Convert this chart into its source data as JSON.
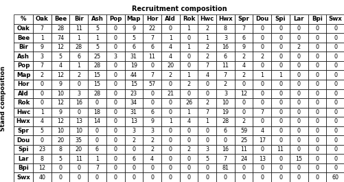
{
  "title": "Recruitment composition",
  "col_header": [
    "%",
    "Oak",
    "Bee",
    "Bir",
    "Ash",
    "Pop",
    "Map",
    "Hor",
    "Ald",
    "Rok",
    "Hwc",
    "Hwx",
    "Spr",
    "Dou",
    "Spi",
    "Lar",
    "Bpi",
    "Swx"
  ],
  "row_header": [
    "Oak",
    "Bee",
    "Bir",
    "Ash",
    "Pop",
    "Map",
    "Hor",
    "Ald",
    "Rok",
    "Hwc",
    "Hwx",
    "Spr",
    "Dou",
    "Spi",
    "Lar",
    "Bpi",
    "Swx"
  ],
  "y_label": "Stand composition",
  "data": [
    [
      7,
      28,
      11,
      5,
      0,
      9,
      22,
      0,
      1,
      2,
      8,
      7,
      0,
      0,
      0,
      0,
      0
    ],
    [
      1,
      74,
      1,
      1,
      0,
      5,
      7,
      1,
      0,
      1,
      3,
      6,
      0,
      0,
      0,
      0,
      0
    ],
    [
      9,
      12,
      28,
      5,
      0,
      6,
      6,
      4,
      1,
      2,
      16,
      9,
      0,
      0,
      2,
      0,
      0
    ],
    [
      3,
      5,
      6,
      25,
      3,
      31,
      11,
      4,
      0,
      2,
      6,
      2,
      2,
      0,
      0,
      0,
      0
    ],
    [
      7,
      4,
      1,
      28,
      0,
      19,
      0,
      20,
      0,
      7,
      11,
      4,
      0,
      0,
      0,
      0,
      0
    ],
    [
      2,
      12,
      2,
      15,
      0,
      44,
      7,
      2,
      1,
      4,
      7,
      2,
      1,
      1,
      0,
      0,
      0
    ],
    [
      0,
      9,
      0,
      15,
      0,
      15,
      57,
      0,
      2,
      0,
      2,
      0,
      0,
      0,
      0,
      0,
      0
    ],
    [
      0,
      10,
      3,
      28,
      0,
      23,
      0,
      21,
      0,
      0,
      3,
      12,
      0,
      0,
      0,
      0,
      0
    ],
    [
      0,
      12,
      16,
      0,
      0,
      34,
      0,
      0,
      26,
      2,
      10,
      0,
      0,
      0,
      0,
      0,
      0
    ],
    [
      1,
      9,
      0,
      18,
      0,
      31,
      6,
      0,
      1,
      7,
      19,
      0,
      7,
      0,
      0,
      0,
      0
    ],
    [
      4,
      12,
      13,
      14,
      0,
      13,
      9,
      1,
      4,
      1,
      28,
      2,
      0,
      0,
      0,
      0,
      0
    ],
    [
      5,
      10,
      10,
      0,
      0,
      3,
      3,
      0,
      0,
      0,
      6,
      59,
      4,
      0,
      0,
      0,
      0
    ],
    [
      0,
      20,
      35,
      0,
      0,
      2,
      2,
      0,
      0,
      0,
      0,
      25,
      17,
      0,
      0,
      0,
      0
    ],
    [
      23,
      8,
      20,
      6,
      0,
      0,
      2,
      0,
      2,
      3,
      16,
      11,
      0,
      11,
      0,
      0,
      0
    ],
    [
      8,
      5,
      11,
      1,
      0,
      6,
      4,
      0,
      0,
      5,
      7,
      24,
      13,
      0,
      15,
      0,
      0
    ],
    [
      12,
      0,
      0,
      7,
      0,
      0,
      0,
      0,
      0,
      0,
      81,
      0,
      0,
      0,
      0,
      0,
      0
    ],
    [
      40,
      0,
      0,
      0,
      0,
      0,
      0,
      0,
      0,
      0,
      0,
      0,
      0,
      0,
      0,
      0,
      60
    ]
  ],
  "bg_color": "#ffffff",
  "header_bg": "#ffffff",
  "line_color": "#000000",
  "text_color": "#000000",
  "title_fontsize": 7,
  "cell_fontsize": 5.8,
  "header_fontsize": 6.2,
  "ylabel_fontsize": 6.5
}
